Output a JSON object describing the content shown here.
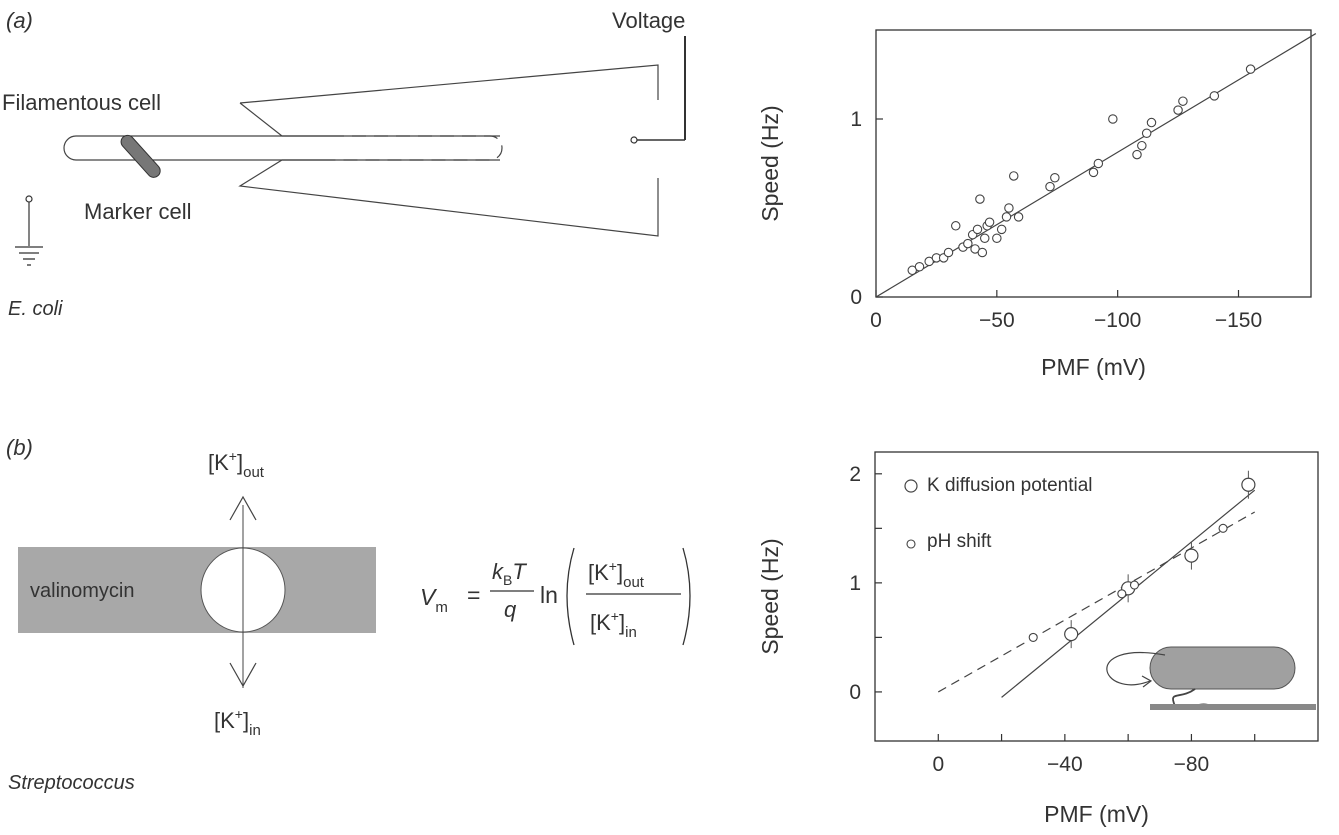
{
  "panel_a": {
    "label": "(a)",
    "voltage_label": "Voltage",
    "filamentous_label": "Filamentous cell",
    "marker_label": "Marker cell",
    "organism_label": "E. coli"
  },
  "panel_b": {
    "label": "(b)",
    "k_out_label": "[K",
    "k_out_sup": "+",
    "k_out_sub": "out",
    "k_in_label": "[K",
    "k_in_sup": "+",
    "k_in_sub": "in",
    "valinomycin_label": "valinomycin",
    "organism_label": "Streptococcus",
    "equation": {
      "lhs": "V",
      "lhs_sub": "m",
      "equals": "=",
      "num_k": "k",
      "num_k_sub": "B",
      "num_T": "T",
      "den": "q",
      "ln": "ln",
      "frac_num": "[K",
      "frac_num_sup": "+",
      "frac_num_sub": "out",
      "frac_den": "[K",
      "frac_den_sup": "+",
      "frac_den_sub": "in"
    }
  },
  "chart_data": [
    {
      "type": "scatter",
      "xlabel": "PMF (mV)",
      "ylabel": "Speed (Hz)",
      "xlim": [
        0,
        -180
      ],
      "ylim": [
        0,
        1.5
      ],
      "xticks": [
        0,
        -50,
        -100,
        -150
      ],
      "xtick_labels": [
        "0",
        "−50",
        "−100",
        "−150"
      ],
      "yticks": [
        0,
        1
      ],
      "ytick_labels": [
        "0",
        "1"
      ],
      "series": [
        {
          "points": [
            {
              "x": -15,
              "y": 0.15
            },
            {
              "x": -18,
              "y": 0.17
            },
            {
              "x": -22,
              "y": 0.2
            },
            {
              "x": -25,
              "y": 0.22
            },
            {
              "x": -28,
              "y": 0.22
            },
            {
              "x": -30,
              "y": 0.25
            },
            {
              "x": -33,
              "y": 0.4
            },
            {
              "x": -36,
              "y": 0.28
            },
            {
              "x": -38,
              "y": 0.3
            },
            {
              "x": -40,
              "y": 0.35
            },
            {
              "x": -41,
              "y": 0.27
            },
            {
              "x": -42,
              "y": 0.38
            },
            {
              "x": -43,
              "y": 0.55
            },
            {
              "x": -44,
              "y": 0.25
            },
            {
              "x": -45,
              "y": 0.33
            },
            {
              "x": -46,
              "y": 0.4
            },
            {
              "x": -47,
              "y": 0.42
            },
            {
              "x": -50,
              "y": 0.33
            },
            {
              "x": -52,
              "y": 0.38
            },
            {
              "x": -54,
              "y": 0.45
            },
            {
              "x": -55,
              "y": 0.5
            },
            {
              "x": -57,
              "y": 0.68
            },
            {
              "x": -59,
              "y": 0.45
            },
            {
              "x": -72,
              "y": 0.62
            },
            {
              "x": -74,
              "y": 0.67
            },
            {
              "x": -90,
              "y": 0.7
            },
            {
              "x": -92,
              "y": 0.75
            },
            {
              "x": -98,
              "y": 1.0
            },
            {
              "x": -108,
              "y": 0.8
            },
            {
              "x": -110,
              "y": 0.85
            },
            {
              "x": -112,
              "y": 0.92
            },
            {
              "x": -114,
              "y": 0.98
            },
            {
              "x": -125,
              "y": 1.05
            },
            {
              "x": -127,
              "y": 1.1
            },
            {
              "x": -140,
              "y": 1.13
            },
            {
              "x": -155,
              "y": 1.28
            }
          ]
        }
      ],
      "fit_line": {
        "x": [
          0,
          -182
        ],
        "y": [
          0,
          1.48
        ]
      }
    },
    {
      "type": "scatter",
      "xlabel": "PMF (mV)",
      "ylabel": "Speed (Hz)",
      "xlim": [
        20,
        -120
      ],
      "ylim": [
        -0.45,
        2.2
      ],
      "xticks": [
        0,
        -20,
        -40,
        -60,
        -80,
        -100
      ],
      "xtick_labels": [
        "0",
        "",
        "−40",
        "",
        "−80",
        ""
      ],
      "yticks": [
        0,
        0.5,
        1,
        1.5,
        2
      ],
      "ytick_labels": [
        "0",
        "",
        "1",
        "",
        "2"
      ],
      "legend_position": "top-left",
      "series": [
        {
          "name": "K diffusion potential",
          "marker": "circle",
          "points": [
            {
              "x": -42,
              "y": 0.53
            },
            {
              "x": -60,
              "y": 0.95
            },
            {
              "x": -80,
              "y": 1.25
            },
            {
              "x": -98,
              "y": 1.9
            }
          ],
          "fit_line": {
            "x": [
              -20,
              -100
            ],
            "y": [
              -0.05,
              1.85
            ]
          }
        },
        {
          "name": "pH shift",
          "marker": "small-circle",
          "points": [
            {
              "x": -30,
              "y": 0.5
            },
            {
              "x": -58,
              "y": 0.9
            },
            {
              "x": -62,
              "y": 0.98
            },
            {
              "x": -90,
              "y": 1.5
            }
          ],
          "fit_line": {
            "x": [
              0,
              -100
            ],
            "y": [
              0,
              1.65
            ]
          }
        }
      ]
    }
  ]
}
